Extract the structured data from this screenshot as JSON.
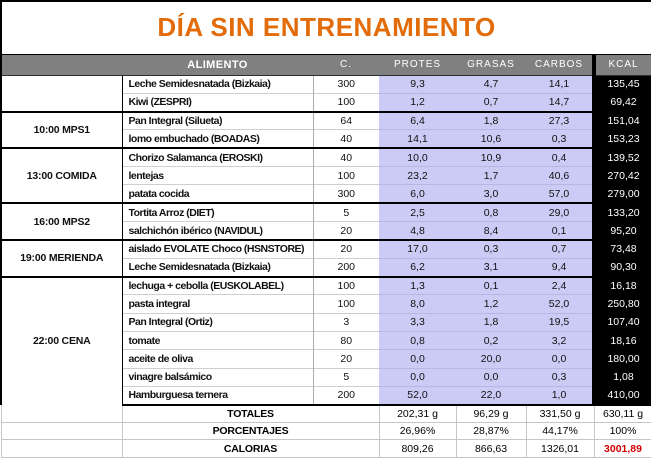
{
  "title": "DÍA SIN ENTRENAMIENTO",
  "colors": {
    "title_orange": "#e36c0a",
    "header_gray": "#808080",
    "macro_lavender": "#cbcbf5",
    "kcal_black": "#000000",
    "total_red": "#d10000"
  },
  "header": {
    "alimento": "ALIMENTO",
    "cantidad": "C.",
    "protes": "PROTES",
    "grasas": "GRASAS",
    "carbos": "CARBOS",
    "kcal": "KCAL"
  },
  "groups": [
    {
      "time_label": "",
      "items": [
        {
          "name": "Leche Semidesnatada (Bizkaia)",
          "qty": "300",
          "protein": "9,3",
          "fat": "4,7",
          "carbs": "14,1",
          "kcal": "135,45"
        },
        {
          "name": "Kiwi (ZESPRI)",
          "qty": "100",
          "protein": "1,2",
          "fat": "0,7",
          "carbs": "14,7",
          "kcal": "69,42"
        }
      ]
    },
    {
      "time_label": "10:00 MPS1",
      "items": [
        {
          "name": "Pan Integral (Silueta)",
          "qty": "64",
          "protein": "6,4",
          "fat": "1,8",
          "carbs": "27,3",
          "kcal": "151,04"
        },
        {
          "name": "lomo embuchado (BOADAS)",
          "qty": "40",
          "protein": "14,1",
          "fat": "10,6",
          "carbs": "0,3",
          "kcal": "153,23"
        }
      ]
    },
    {
      "time_label": "13:00 COMIDA",
      "items": [
        {
          "name": "Chorizo Salamanca (EROSKI)",
          "qty": "40",
          "protein": "10,0",
          "fat": "10,9",
          "carbs": "0,4",
          "kcal": "139,52"
        },
        {
          "name": "lentejas",
          "qty": "100",
          "protein": "23,2",
          "fat": "1,7",
          "carbs": "40,6",
          "kcal": "270,42"
        },
        {
          "name": "patata cocida",
          "qty": "300",
          "protein": "6,0",
          "fat": "3,0",
          "carbs": "57,0",
          "kcal": "279,00"
        }
      ]
    },
    {
      "time_label": "16:00 MPS2",
      "items": [
        {
          "name": "Tortita Arroz (DIET)",
          "qty": "5",
          "protein": "2,5",
          "fat": "0,8",
          "carbs": "29,0",
          "kcal": "133,20"
        },
        {
          "name": "salchichón ibérico (NAVIDUL)",
          "qty": "20",
          "protein": "4,8",
          "fat": "8,4",
          "carbs": "0,1",
          "kcal": "95,20"
        }
      ]
    },
    {
      "time_label": "19:00 MERIENDA",
      "items": [
        {
          "name": "aislado EVOLATE Choco (HSNSTORE)",
          "qty": "20",
          "protein": "17,0",
          "fat": "0,3",
          "carbs": "0,7",
          "kcal": "73,48"
        },
        {
          "name": "Leche Semidesnatada (Bizkaia)",
          "qty": "200",
          "protein": "6,2",
          "fat": "3,1",
          "carbs": "9,4",
          "kcal": "90,30"
        }
      ]
    },
    {
      "time_label": "22:00 CENA",
      "items": [
        {
          "name": "lechuga + cebolla (EUSKOLABEL)",
          "qty": "100",
          "protein": "1,3",
          "fat": "0,1",
          "carbs": "2,4",
          "kcal": "16,18"
        },
        {
          "name": "pasta integral",
          "qty": "100",
          "protein": "8,0",
          "fat": "1,2",
          "carbs": "52,0",
          "kcal": "250,80"
        },
        {
          "name": "Pan Integral (Ortiz)",
          "qty": "3",
          "protein": "3,3",
          "fat": "1,8",
          "carbs": "19,5",
          "kcal": "107,40"
        },
        {
          "name": "tomate",
          "qty": "80",
          "protein": "0,8",
          "fat": "0,2",
          "carbs": "3,2",
          "kcal": "18,16"
        },
        {
          "name": "aceite de oliva",
          "qty": "20",
          "protein": "0,0",
          "fat": "20,0",
          "carbs": "0,0",
          "kcal": "180,00"
        },
        {
          "name": "vinagre balsámico",
          "qty": "5",
          "protein": "0,0",
          "fat": "0,0",
          "carbs": "0,3",
          "kcal": "1,08"
        },
        {
          "name": "Hamburguesa ternera",
          "qty": "200",
          "protein": "52,0",
          "fat": "22,0",
          "carbs": "1,0",
          "kcal": "410,00"
        }
      ]
    }
  ],
  "summary_rows": [
    {
      "label": "TOTALES",
      "protein": "202,31 g",
      "fat": "96,29 g",
      "carbs": "331,50 g",
      "kcal": "630,11 g",
      "highlight_kcal": false
    },
    {
      "label": "PORCENTAJES",
      "protein": "26,96%",
      "fat": "28,87%",
      "carbs": "44,17%",
      "kcal": "100%",
      "highlight_kcal": false
    },
    {
      "label": "CALORIAS",
      "protein": "809,26",
      "fat": "866,63",
      "carbs": "1326,01",
      "kcal": "3001,89",
      "highlight_kcal": true
    }
  ]
}
